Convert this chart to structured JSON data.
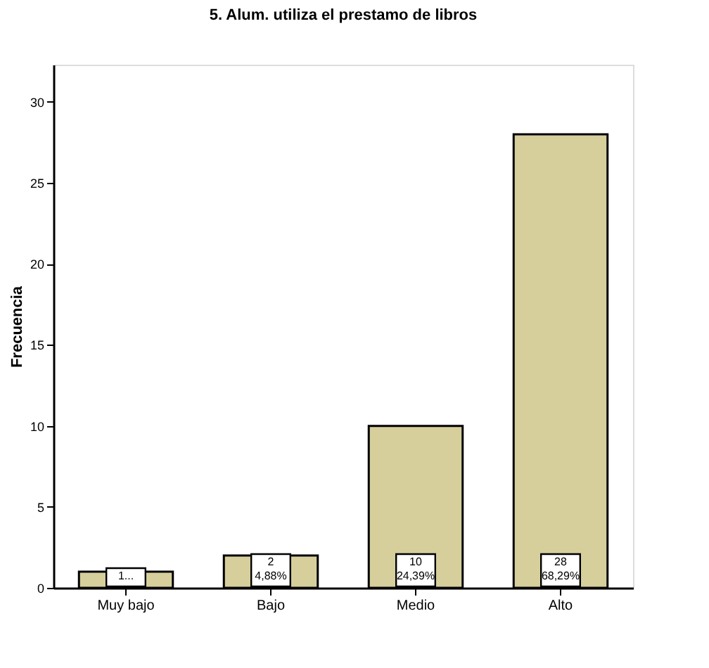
{
  "chart_data": {
    "type": "bar",
    "title": "5. Alum. utiliza el prestamo de libros",
    "ylabel": "Frecuencia",
    "categories": [
      "Muy bajo",
      "Bajo",
      "Medio",
      "Alto"
    ],
    "values": [
      1,
      2,
      10,
      28
    ],
    "color": "#d6cf9c",
    "value_labels": [
      "1...",
      "2\n4,88%",
      "10\n24,39%",
      "28\n68,29%"
    ],
    "ylim": [
      0,
      32.3
    ],
    "yticks": [
      0,
      5,
      10,
      15,
      20,
      25,
      30
    ],
    "grid": false
  }
}
